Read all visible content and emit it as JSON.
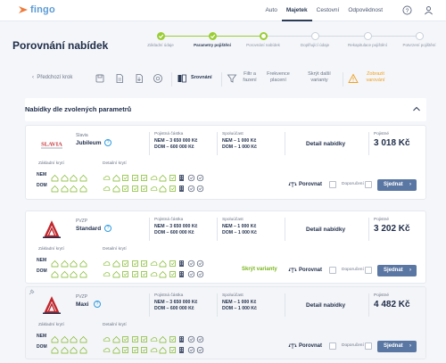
{
  "header": {
    "logo": "fingo",
    "nav": [
      "Auto",
      "Majetek",
      "Cestovní",
      "Odpovědnost"
    ],
    "active_nav": "Majetek",
    "help_icon": "help-circle-icon",
    "user_icon": "user-icon"
  },
  "page": {
    "title": "Porovnání nabídek"
  },
  "stepper": [
    {
      "label": "Základní údaje",
      "state": "done"
    },
    {
      "label": "Parametry pojištění",
      "state": "done"
    },
    {
      "label": "Porovnání nabídek",
      "state": "current"
    },
    {
      "label": "Doplňující údaje",
      "state": "todo"
    },
    {
      "label": "Rekapitulace pojištění",
      "state": "todo"
    },
    {
      "label": "Potvrzení pojištění",
      "state": "todo"
    }
  ],
  "toolbar": {
    "back": "Předchozí krok",
    "compare": "Srovnání",
    "filter": "Filtr a řazení",
    "frequency": "Frekvence placení",
    "more_variants": "Skrýt další varianty",
    "warnings": "Zobrazit varování"
  },
  "section": {
    "title": "Nabídky dle zvolených parametrů"
  },
  "labels": {
    "sum_insured": "Pojistná částka",
    "deductible": "Spoluúčast",
    "detail": "Detail nabídky",
    "premium": "Pojistné",
    "basic_cov": "Základní krytí",
    "detail_cov": "Detailní krytí",
    "nem": "NEM",
    "dom": "DOM",
    "compare": "Porovnat",
    "recommend": "Doporučení",
    "arrange": "Sjednat",
    "hide_variants": "Skrýt varianty"
  },
  "offers": [
    {
      "insurer": "Slavia",
      "logo_text": "SLAVIA",
      "product": "Jubileum",
      "sum_nem": "NEM – 3 650 000 Kč",
      "sum_dom": "DOM – 600 000 Kč",
      "ded_nem": "NEM – 1 000 Kč",
      "ded_dom": "DOM – 1 000 Kč",
      "price": "3 018 Kč"
    },
    {
      "insurer": "PVZP",
      "logo_text": "",
      "product": "Standard",
      "sum_nem": "NEM – 3 650 000 Kč",
      "sum_dom": "DOM – 600 000 Kč",
      "ded_nem": "NEM – 1 000 Kč",
      "ded_dom": "DOM – 1 000 Kč",
      "price": "3 202 Kč"
    },
    {
      "insurer": "PVZP",
      "logo_text": "",
      "product": "Maxi",
      "sum_nem": "NEM – 3 650 000 Kč",
      "sum_dom": "DOM – 600 000 Kč",
      "ded_nem": "NEM – 1 000 Kč",
      "ded_dom": "DOM – 1 000 Kč",
      "price": "4 482 Kč"
    }
  ],
  "colors": {
    "accent_green": "#9acd32",
    "button_blue": "#5a77a3",
    "warning": "#f0a020",
    "brand_orange": "#f07a3a",
    "brand_blue": "#5b9bd5"
  }
}
